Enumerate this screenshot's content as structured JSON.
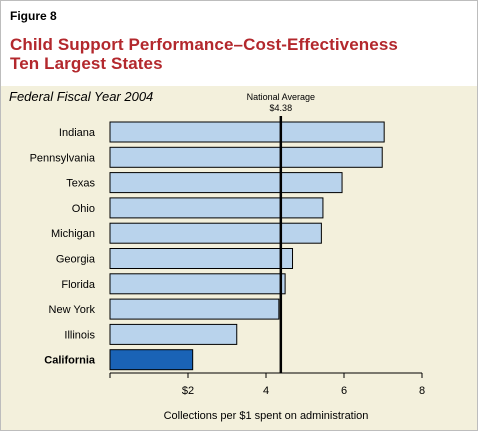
{
  "figure_label": "Figure 8",
  "title_line1": "Child Support Performance–Cost-Effectiveness",
  "title_line2": "Ten Largest States",
  "colors": {
    "title": "#b3282d",
    "panel_background": "#f3f0dc",
    "bar_fill": "#b9d3ec",
    "highlight_fill": "#1a63b6",
    "reference_line": "#000000"
  },
  "chart_data": {
    "type": "bar",
    "orientation": "horizontal",
    "subtitle": "Federal Fiscal Year 2004",
    "xlabel": "Collections per $1 spent on administration",
    "categories": [
      "Indiana",
      "Pennsylvania",
      "Texas",
      "Ohio",
      "Michigan",
      "Georgia",
      "Florida",
      "New York",
      "Illinois",
      "California"
    ],
    "values": [
      7.03,
      6.98,
      5.95,
      5.46,
      5.42,
      4.68,
      4.49,
      4.33,
      3.25,
      2.12
    ],
    "highlight": "California",
    "xlim": [
      0,
      8
    ],
    "xticks": [
      2,
      4,
      6,
      8
    ],
    "xtick_labels": [
      "$2",
      "4",
      "6",
      "8"
    ],
    "reference_line": {
      "label": "National Average",
      "value_label": "$4.38",
      "value": 4.38
    }
  }
}
